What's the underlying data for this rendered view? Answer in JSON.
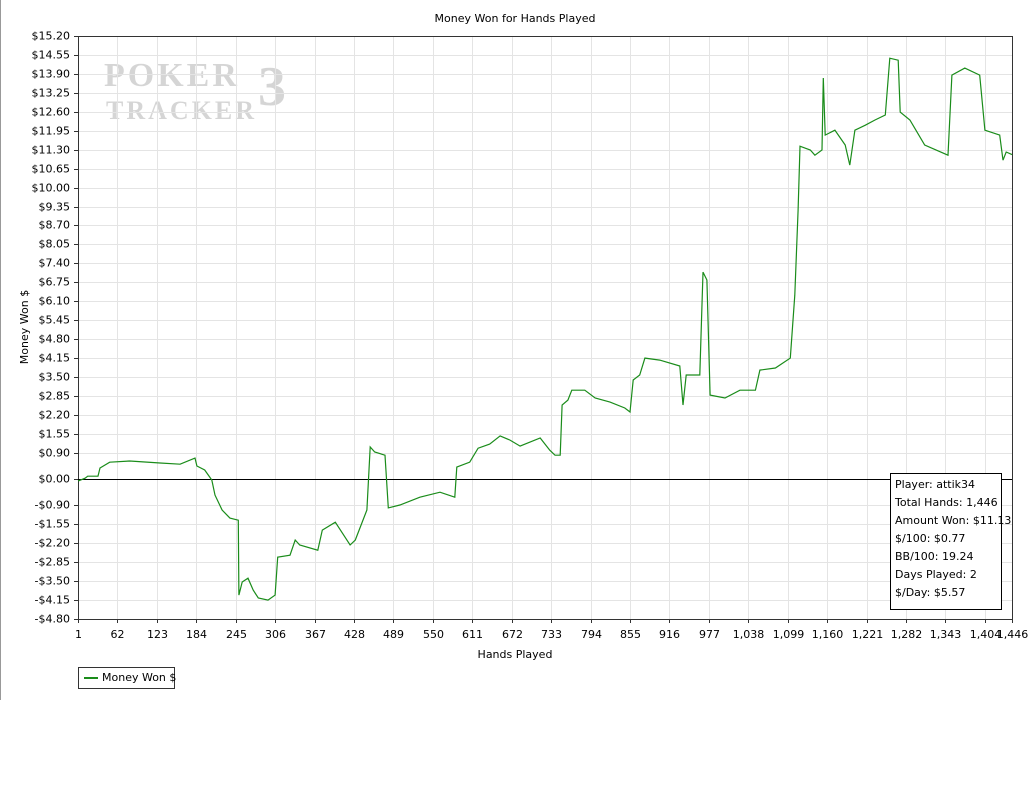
{
  "chart_data": {
    "type": "line",
    "title": "Money Won for Hands Played",
    "x_label": "Hands Played",
    "y_label": "Money Won $",
    "watermark": {
      "top": "POKER",
      "bottom": "TRACKER",
      "mark": "3"
    },
    "xlim": [
      1,
      1446
    ],
    "ylim": [
      -4.8,
      15.2
    ],
    "xticks": [
      1,
      62,
      123,
      184,
      245,
      306,
      367,
      428,
      489,
      550,
      611,
      672,
      733,
      794,
      855,
      916,
      977,
      {
        "value": 1038,
        "label": "1,038"
      },
      {
        "value": 1099,
        "label": "1,099"
      },
      {
        "value": 1160,
        "label": "1,160"
      },
      {
        "value": 1221,
        "label": "1,221"
      },
      {
        "value": 1282,
        "label": "1,282"
      },
      {
        "value": 1343,
        "label": "1,343"
      },
      {
        "value": 1404,
        "label": "1,404"
      },
      {
        "value": 1446,
        "label": "1,446"
      }
    ],
    "yticks": [
      {
        "value": -4.8,
        "label": "-$4.80"
      },
      {
        "value": -4.15,
        "label": "-$4.15"
      },
      {
        "value": -3.5,
        "label": "-$3.50"
      },
      {
        "value": -2.85,
        "label": "-$2.85"
      },
      {
        "value": -2.2,
        "label": "-$2.20"
      },
      {
        "value": -1.55,
        "label": "-$1.55"
      },
      {
        "value": -0.9,
        "label": "-$0.90"
      },
      {
        "value": 0,
        "label": "$0.00"
      },
      {
        "value": 0.9,
        "label": "$0.90"
      },
      {
        "value": 1.55,
        "label": "$1.55"
      },
      {
        "value": 2.2,
        "label": "$2.20"
      },
      {
        "value": 2.85,
        "label": "$2.85"
      },
      {
        "value": 3.5,
        "label": "$3.50"
      },
      {
        "value": 4.15,
        "label": "$4.15"
      },
      {
        "value": 4.8,
        "label": "$4.80"
      },
      {
        "value": 5.45,
        "label": "$5.45"
      },
      {
        "value": 6.1,
        "label": "$6.10"
      },
      {
        "value": 6.75,
        "label": "$6.75"
      },
      {
        "value": 7.4,
        "label": "$7.40"
      },
      {
        "value": 8.05,
        "label": "$8.05"
      },
      {
        "value": 8.7,
        "label": "$8.70"
      },
      {
        "value": 9.35,
        "label": "$9.35"
      },
      {
        "value": 10,
        "label": "$10.00"
      },
      {
        "value": 10.65,
        "label": "$10.65"
      },
      {
        "value": 11.3,
        "label": "$11.30"
      },
      {
        "value": 11.95,
        "label": "$11.95"
      },
      {
        "value": 12.6,
        "label": "$12.60"
      },
      {
        "value": 13.25,
        "label": "$13.25"
      },
      {
        "value": 13.9,
        "label": "$13.90"
      },
      {
        "value": 14.55,
        "label": "$14.55"
      },
      {
        "value": 15.2,
        "label": "$15.20"
      }
    ],
    "grid": true,
    "x": [
      1,
      12,
      16,
      32,
      35,
      50,
      81,
      128,
      159,
      182,
      185,
      197,
      208,
      213,
      224,
      236,
      249,
      250,
      255,
      264,
      272,
      280,
      295,
      306,
      310,
      329,
      337,
      344,
      372,
      379,
      399,
      422,
      430,
      448,
      453,
      460,
      476,
      481,
      499,
      530,
      561,
      584,
      587,
      607,
      620,
      638,
      654,
      669,
      685,
      716,
      731,
      739,
      747,
      750,
      759,
      765,
      785,
      801,
      824,
      847,
      855,
      860,
      870,
      878,
      901,
      932,
      937,
      942,
      963,
      968,
      974,
      979,
      1002,
      1025,
      1049,
      1056,
      1080,
      1103,
      1110,
      1115,
      1118,
      1134,
      1141,
      1152,
      1154,
      1157,
      1172,
      1188,
      1195,
      1203,
      1219,
      1234,
      1250,
      1257,
      1270,
      1273,
      1288,
      1311,
      1347,
      1353,
      1373,
      1396,
      1404,
      1427,
      1432,
      1437,
      1446
    ],
    "series": [
      {
        "name": "Money Won $",
        "color": "#1a8c1a",
        "values": [
          -0.07,
          0.03,
          0.1,
          0.1,
          0.38,
          0.58,
          0.62,
          0.55,
          0.51,
          0.72,
          0.45,
          0.31,
          -0.03,
          -0.55,
          -1.06,
          -1.34,
          -1.41,
          -3.98,
          -3.53,
          -3.4,
          -3.81,
          -4.08,
          -4.15,
          -3.98,
          -2.68,
          -2.61,
          -2.09,
          -2.26,
          -2.44,
          -1.75,
          -1.48,
          -2.26,
          -2.09,
          -1.06,
          1.1,
          0.93,
          0.82,
          -0.99,
          -0.89,
          -0.62,
          -0.45,
          -0.62,
          0.41,
          0.58,
          1.06,
          1.2,
          1.48,
          1.34,
          1.13,
          1.41,
          0.99,
          0.82,
          0.82,
          2.54,
          2.71,
          3.05,
          3.05,
          2.78,
          2.64,
          2.44,
          2.3,
          3.4,
          3.57,
          4.15,
          4.08,
          3.88,
          2.54,
          3.57,
          3.57,
          7.1,
          6.83,
          2.88,
          2.78,
          3.05,
          3.05,
          3.74,
          3.81,
          4.15,
          6.31,
          9.23,
          11.42,
          11.29,
          11.11,
          11.29,
          13.76,
          11.8,
          11.97,
          11.46,
          10.77,
          11.97,
          12.14,
          12.32,
          12.49,
          14.44,
          14.37,
          12.59,
          12.32,
          11.46,
          11.11,
          13.86,
          14.1,
          13.86,
          11.97,
          11.8,
          10.94,
          11.22,
          11.13
        ]
      }
    ],
    "stats": [
      "Player: attik34",
      "Total Hands: 1,446",
      "Amount Won: $11.13",
      "$/100: $0.77",
      "BB/100: 19.24",
      "Days Played: 2",
      "$/Day: $5.57"
    ]
  }
}
